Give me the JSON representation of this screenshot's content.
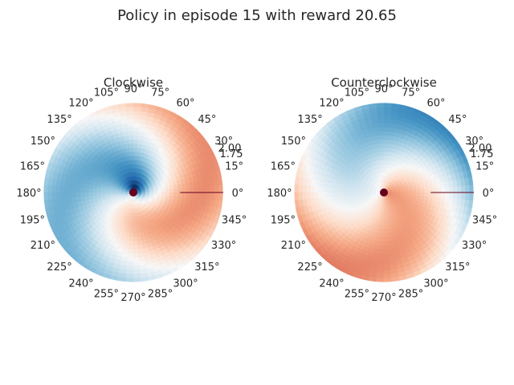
{
  "figure": {
    "suptitle": "Policy in episode 15 with reward 20.65"
  },
  "chart_data": [
    {
      "type": "heatmap",
      "projection": "polar",
      "title": "Clockwise",
      "theta_ticks_deg": [
        0,
        15,
        30,
        45,
        60,
        75,
        90,
        105,
        120,
        135,
        150,
        165,
        180,
        195,
        210,
        225,
        240,
        255,
        270,
        285,
        300,
        315,
        330,
        345
      ],
      "theta_tick_labels": [
        "0°",
        "15°",
        "30°",
        "45°",
        "60°",
        "75°",
        "90°",
        "105°",
        "120°",
        "135°",
        "150°",
        "165°",
        "180°",
        "195°",
        "210°",
        "225°",
        "240°",
        "255°",
        "270°",
        "285°",
        "300°",
        "315°",
        "330°",
        "345°"
      ],
      "r_tick_labels": [
        "2.00",
        "1.75"
      ],
      "rlim": [
        0,
        2
      ],
      "colormap": "RdBu",
      "value_pattern": "counterclockwise-spiral",
      "grid": false
    },
    {
      "type": "heatmap",
      "projection": "polar",
      "title": "Counterclockwise",
      "theta_ticks_deg": [
        0,
        15,
        30,
        45,
        60,
        75,
        90,
        105,
        120,
        135,
        150,
        165,
        180,
        195,
        210,
        225,
        240,
        255,
        270,
        285,
        300,
        315,
        330,
        345
      ],
      "theta_tick_labels": [
        "0°",
        "15°",
        "30°",
        "45°",
        "60°",
        "75°",
        "90°",
        "105°",
        "120°",
        "135°",
        "150°",
        "165°",
        "180°",
        "195°",
        "210°",
        "225°",
        "240°",
        "255°",
        "270°",
        "285°",
        "300°",
        "315°",
        "330°",
        "345°"
      ],
      "r_tick_labels": [
        "2.00",
        "1.75"
      ],
      "rlim": [
        0,
        2
      ],
      "colormap": "RdBu",
      "value_pattern": "clockwise-spiral",
      "grid": false
    }
  ]
}
